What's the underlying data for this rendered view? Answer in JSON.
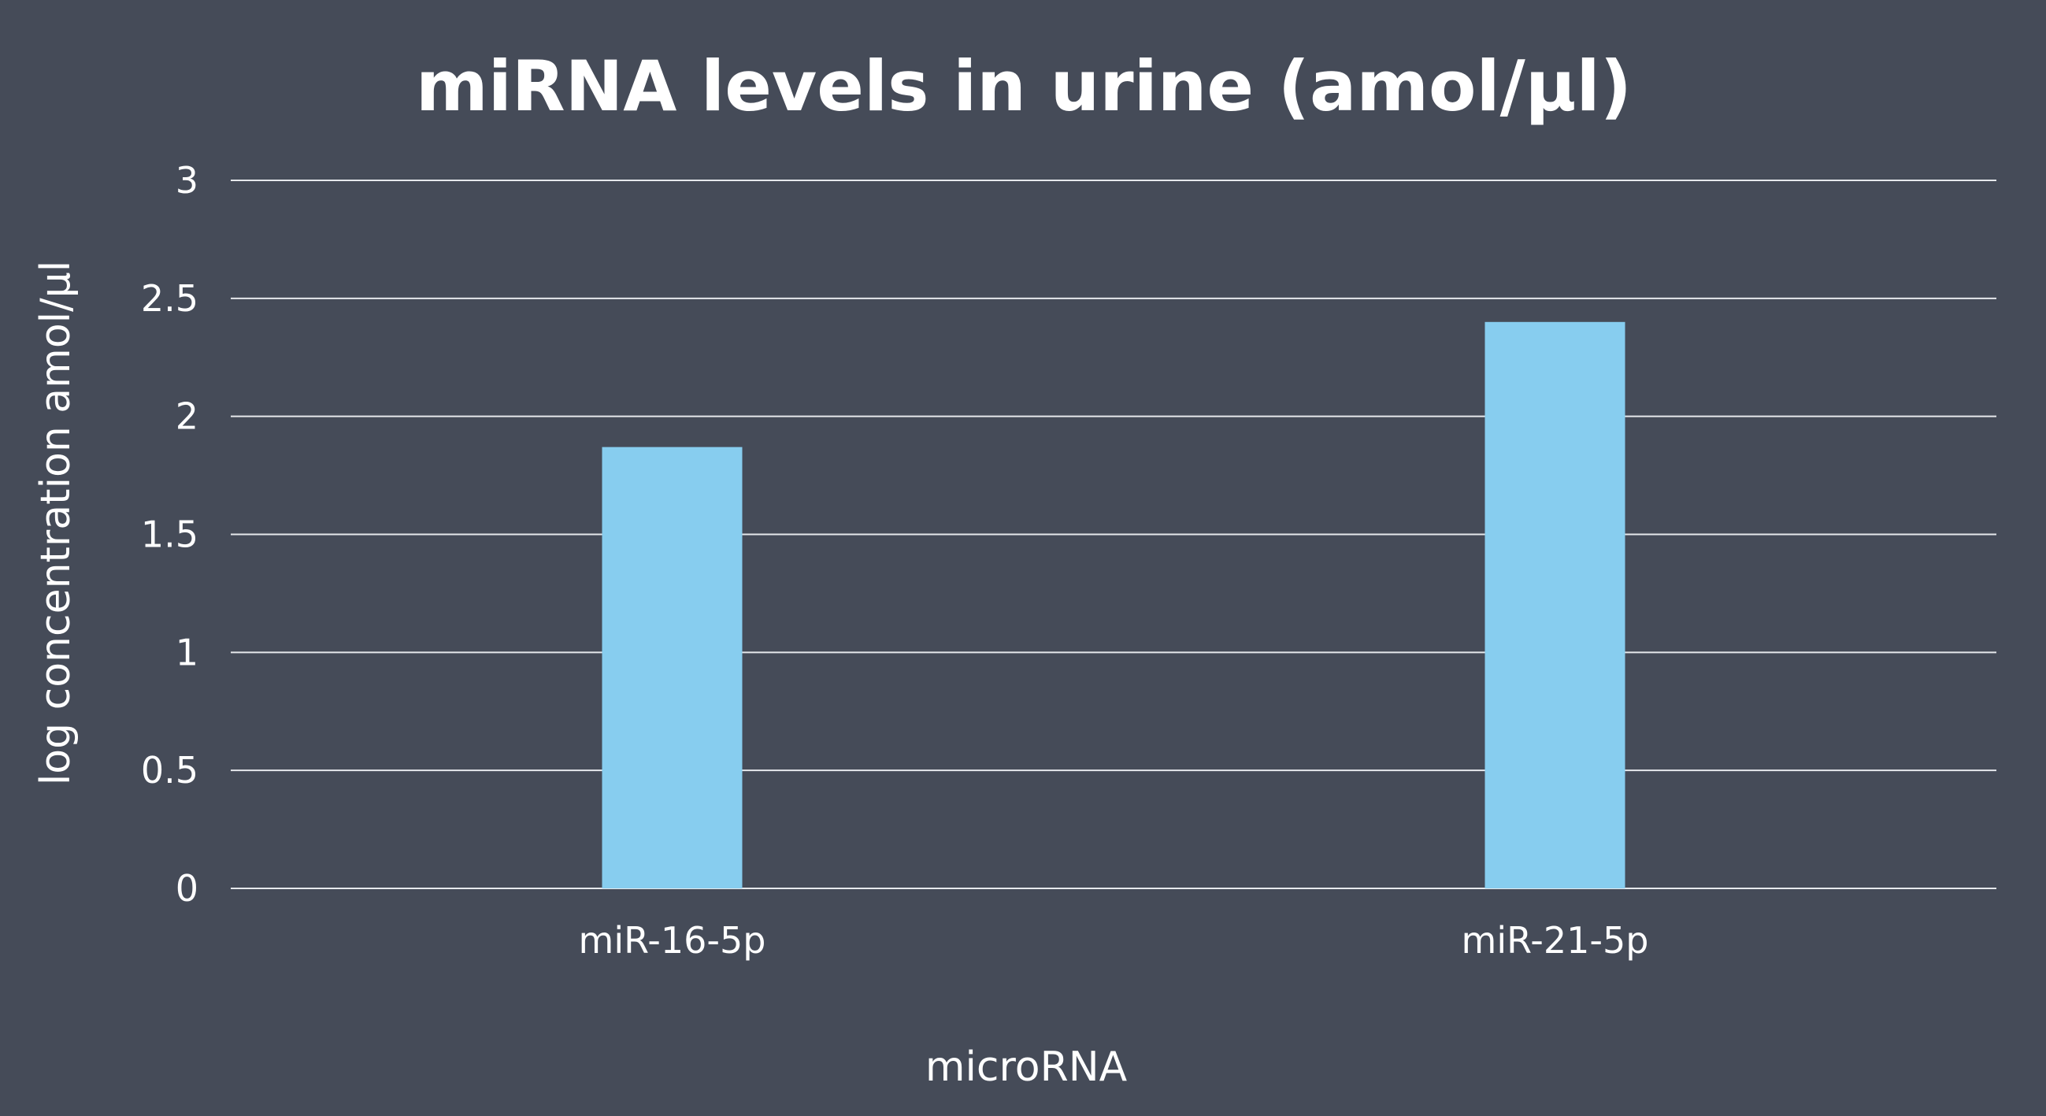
{
  "chart_data": {
    "type": "bar",
    "title": "miRNA levels in urine (amol/µl)",
    "xlabel": "microRNA",
    "ylabel": "log concentration amol/µl",
    "categories": [
      "miR-16-5p",
      "miR-21-5p"
    ],
    "values": [
      1.87,
      2.4
    ],
    "ylim": [
      0,
      3
    ],
    "yticks": [
      "0",
      "0.5",
      "1",
      "1.5",
      "2",
      "2.5",
      "3"
    ],
    "grid": true,
    "legend": "none"
  },
  "colors": {
    "background": "#454b58",
    "bar": "#87cdef",
    "gridline": "#e6e8ec",
    "text": "#ffffff"
  }
}
